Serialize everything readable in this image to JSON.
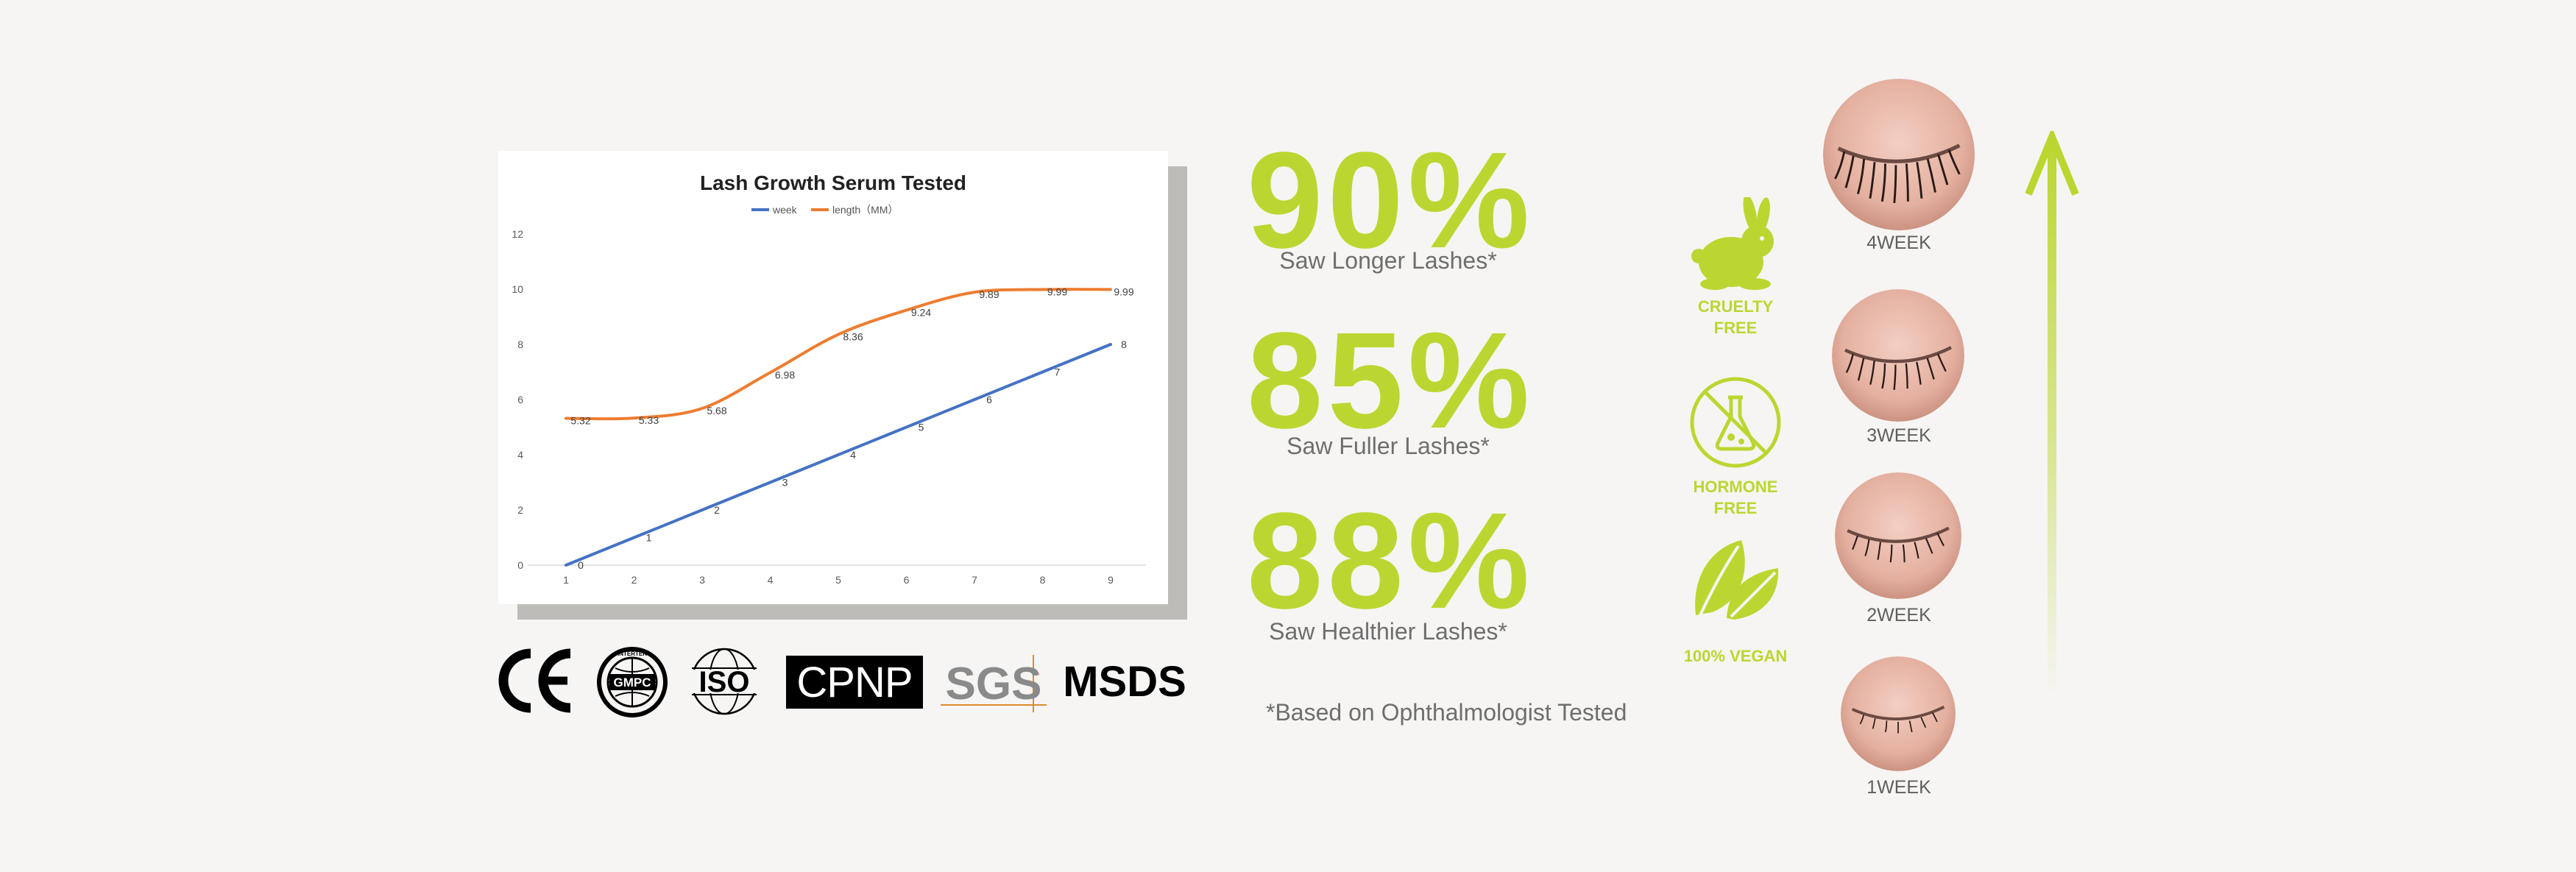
{
  "chart_data": {
    "type": "line",
    "title": "Lash Growth Serum Tested",
    "legend": [
      "week",
      "length（MM）"
    ],
    "legend_position": "top",
    "categories": [
      "1",
      "2",
      "3",
      "4",
      "5",
      "6",
      "7",
      "8",
      "9"
    ],
    "y_ticks": [
      "0",
      "2",
      "4",
      "6",
      "8",
      "10",
      "12"
    ],
    "ylim": [
      0,
      12
    ],
    "grid": false,
    "series": [
      {
        "name": "week",
        "color": "#4472c4",
        "values": [
          0,
          1,
          2,
          3,
          4,
          5,
          6,
          7,
          8
        ],
        "labels": [
          "0",
          "1",
          "2",
          "3",
          "4",
          "5",
          "6",
          "7",
          "8"
        ]
      },
      {
        "name": "length（MM）",
        "color": "#ed7d31",
        "values": [
          5.32,
          5.33,
          5.68,
          6.98,
          8.36,
          9.24,
          9.89,
          9.99,
          9.99
        ],
        "labels": [
          "5.32",
          "5.33",
          "5.68",
          "6.98",
          "8.36",
          "9.24",
          "9.89",
          "9.99",
          "9.99"
        ]
      }
    ]
  },
  "certifications": {
    "ce": "CE",
    "gmpc": "GMPC",
    "gmpc_top": "INTERTEK",
    "iso": "ISO",
    "cpnp": "CPNP",
    "sgs": "SGS",
    "msds": "MSDS"
  },
  "stats": [
    {
      "number": "90%",
      "caption": "Saw Longer Lashes*"
    },
    {
      "number": "85%",
      "caption": "Saw Fuller Lashes*"
    },
    {
      "number": "88%",
      "caption": "Saw Healthier Lashes*"
    }
  ],
  "footnote": "*Based on Ophthalmologist Tested",
  "badges": [
    {
      "icon": "rabbit-icon",
      "line1": "CRUELTY",
      "line2": "FREE"
    },
    {
      "icon": "no-hormone-icon",
      "line1": "HORMONE",
      "line2": "FREE"
    },
    {
      "icon": "leaf-icon",
      "line1": "100% VEGAN",
      "line2": ""
    }
  ],
  "progress": [
    {
      "label": "4WEEK"
    },
    {
      "label": "3WEEK"
    },
    {
      "label": "2WEEK"
    },
    {
      "label": "1WEEK"
    }
  ],
  "colors": {
    "accent_green": "#bcd631",
    "background": "#f6f5f3",
    "text_gray": "#6e6e6e"
  }
}
